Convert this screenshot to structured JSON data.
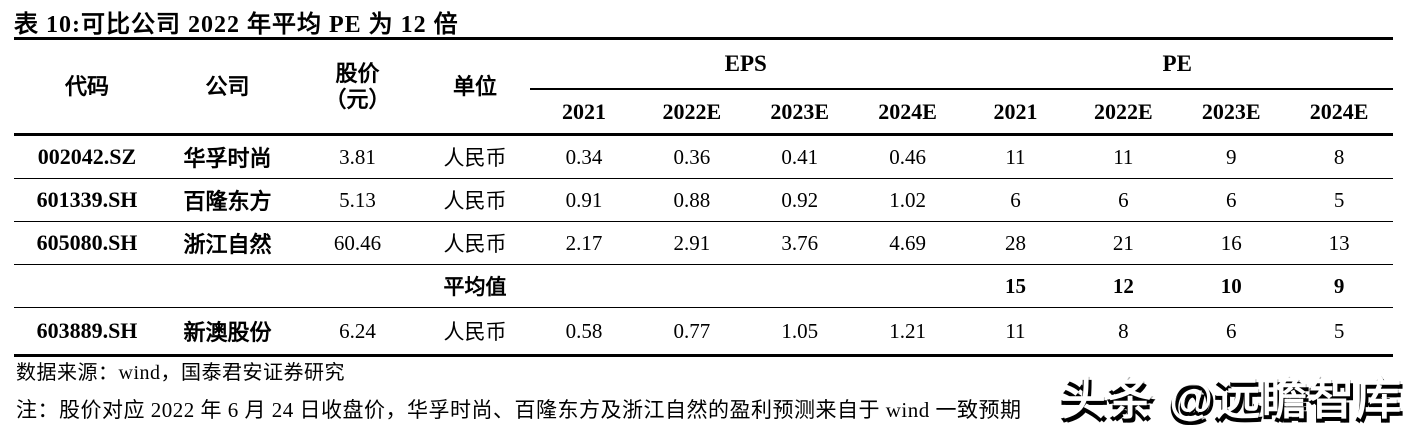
{
  "title": "表 10:可比公司 2022 年平均 PE 为 12 倍",
  "table": {
    "col_headers": {
      "code": "代码",
      "company": "公司",
      "price_line1": "股价",
      "price_line2": "（元）",
      "unit": "单位",
      "eps_group": "EPS",
      "pe_group": "PE",
      "eps_years": [
        "2021",
        "2022E",
        "2023E",
        "2024E"
      ],
      "pe_years": [
        "2021",
        "2022E",
        "2023E",
        "2024E"
      ]
    },
    "rows": [
      {
        "code": "002042.SZ",
        "company": "华孚时尚",
        "price": "3.81",
        "unit": "人民币",
        "eps": [
          "0.34",
          "0.36",
          "0.41",
          "0.46"
        ],
        "pe": [
          "11",
          "11",
          "9",
          "8"
        ],
        "bold": false
      },
      {
        "code": "601339.SH",
        "company": "百隆东方",
        "price": "5.13",
        "unit": "人民币",
        "eps": [
          "0.91",
          "0.88",
          "0.92",
          "1.02"
        ],
        "pe": [
          "6",
          "6",
          "6",
          "5"
        ],
        "bold": false
      },
      {
        "code": "605080.SH",
        "company": "浙江自然",
        "price": "60.46",
        "unit": "人民币",
        "eps": [
          "2.17",
          "2.91",
          "3.76",
          "4.69"
        ],
        "pe": [
          "28",
          "21",
          "16",
          "13"
        ],
        "bold": false
      },
      {
        "code": "",
        "company": "",
        "price": "",
        "unit": "平均值",
        "eps": [
          "",
          "",
          "",
          ""
        ],
        "pe": [
          "15",
          "12",
          "10",
          "9"
        ],
        "bold": true
      },
      {
        "code": "603889.SH",
        "company": "新澳股份",
        "price": "6.24",
        "unit": "人民币",
        "eps": [
          "0.58",
          "0.77",
          "1.05",
          "1.21"
        ],
        "pe": [
          "11",
          "8",
          "6",
          "5"
        ],
        "bold": false
      }
    ]
  },
  "footer": {
    "source": "数据来源：wind，国泰君安证券研究",
    "note": "注：股价对应 2022 年 6 月 24 日收盘价，华孚时尚、百隆东方及浙江自然的盈利预测来自于 wind 一致预期"
  },
  "watermark": "头条 @远瞻智库",
  "colors": {
    "text": "#000000",
    "background": "#ffffff",
    "watermark_fill": "#ffffff",
    "watermark_shadow": "#000000"
  }
}
